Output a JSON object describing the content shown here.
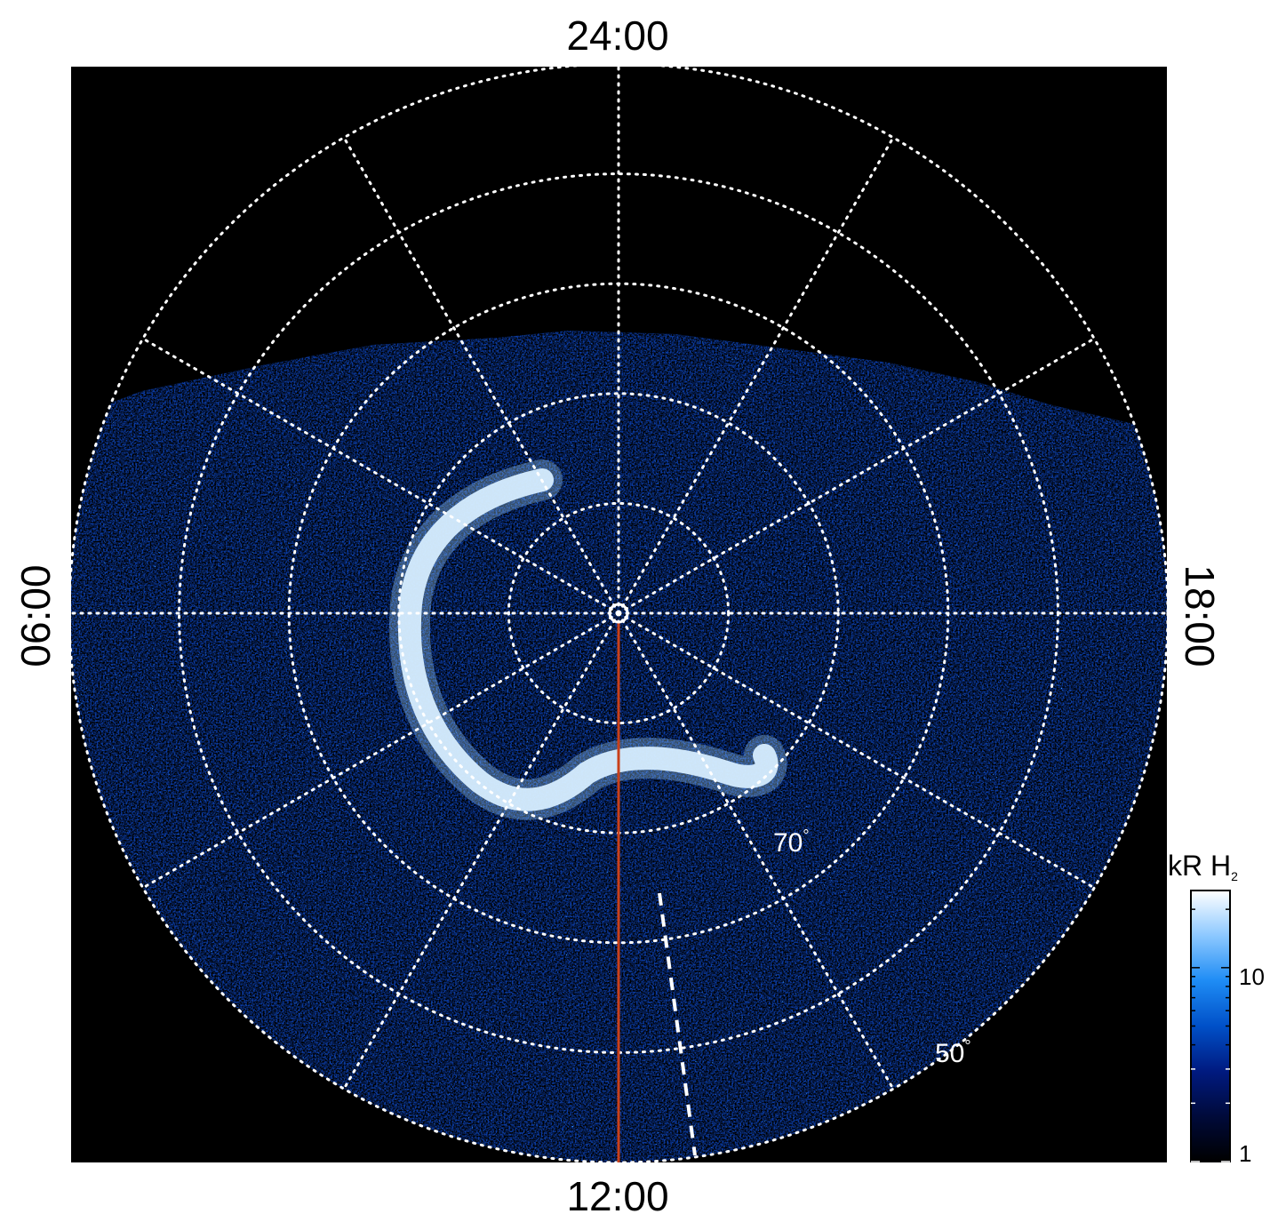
{
  "local_time_labels": {
    "top": "24:00",
    "bottom": "12:00",
    "left": "06:00",
    "right": "18:00"
  },
  "latitude_labels": {
    "inner": "70",
    "outer": "50",
    "degree_symbol": "°"
  },
  "colorbar": {
    "title": "kR H",
    "subscript": "2",
    "scale": "log",
    "ticks": [
      "1",
      "10"
    ],
    "range": [
      1,
      25
    ],
    "colors": [
      "#000000",
      "#000a3a",
      "#001a80",
      "#0050c8",
      "#1e8cf5",
      "#8cc8ff",
      "#ffffff"
    ]
  },
  "colors": {
    "background": "#000000",
    "grid": "#ffffff",
    "meridian_line": "#c8401a"
  },
  "grid": {
    "style": "dotted",
    "latitude_circles_deg": [
      90,
      80,
      70,
      60,
      50,
      40
    ],
    "meridian_count": 12
  }
}
